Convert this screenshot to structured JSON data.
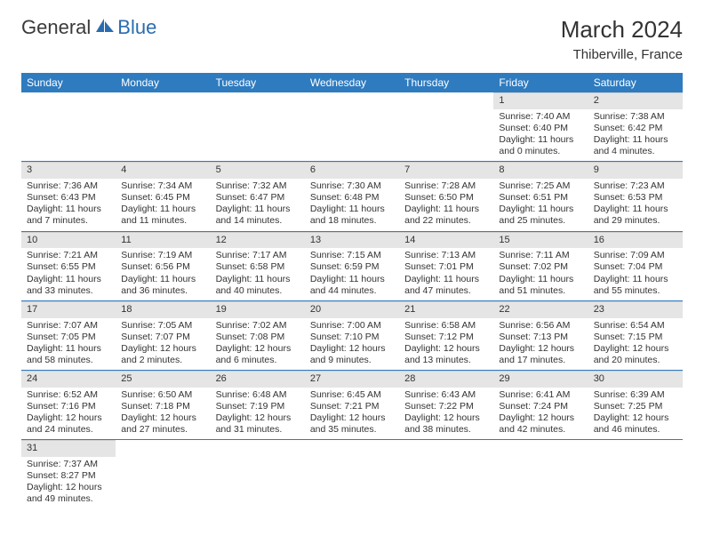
{
  "logo": {
    "name": "General",
    "suffix": "Blue"
  },
  "title": "March 2024",
  "location": "Thiberville, France",
  "header_bg": "#2f7bbf",
  "day_num_bg": "#e5e5e5",
  "days_of_week": [
    "Sunday",
    "Monday",
    "Tuesday",
    "Wednesday",
    "Thursday",
    "Friday",
    "Saturday"
  ],
  "weeks": [
    [
      null,
      null,
      null,
      null,
      null,
      {
        "n": "1",
        "sr": "Sunrise: 7:40 AM",
        "ss": "Sunset: 6:40 PM",
        "dl1": "Daylight: 11 hours",
        "dl2": "and 0 minutes."
      },
      {
        "n": "2",
        "sr": "Sunrise: 7:38 AM",
        "ss": "Sunset: 6:42 PM",
        "dl1": "Daylight: 11 hours",
        "dl2": "and 4 minutes."
      }
    ],
    [
      {
        "n": "3",
        "sr": "Sunrise: 7:36 AM",
        "ss": "Sunset: 6:43 PM",
        "dl1": "Daylight: 11 hours",
        "dl2": "and 7 minutes."
      },
      {
        "n": "4",
        "sr": "Sunrise: 7:34 AM",
        "ss": "Sunset: 6:45 PM",
        "dl1": "Daylight: 11 hours",
        "dl2": "and 11 minutes."
      },
      {
        "n": "5",
        "sr": "Sunrise: 7:32 AM",
        "ss": "Sunset: 6:47 PM",
        "dl1": "Daylight: 11 hours",
        "dl2": "and 14 minutes."
      },
      {
        "n": "6",
        "sr": "Sunrise: 7:30 AM",
        "ss": "Sunset: 6:48 PM",
        "dl1": "Daylight: 11 hours",
        "dl2": "and 18 minutes."
      },
      {
        "n": "7",
        "sr": "Sunrise: 7:28 AM",
        "ss": "Sunset: 6:50 PM",
        "dl1": "Daylight: 11 hours",
        "dl2": "and 22 minutes."
      },
      {
        "n": "8",
        "sr": "Sunrise: 7:25 AM",
        "ss": "Sunset: 6:51 PM",
        "dl1": "Daylight: 11 hours",
        "dl2": "and 25 minutes."
      },
      {
        "n": "9",
        "sr": "Sunrise: 7:23 AM",
        "ss": "Sunset: 6:53 PM",
        "dl1": "Daylight: 11 hours",
        "dl2": "and 29 minutes."
      }
    ],
    [
      {
        "n": "10",
        "sr": "Sunrise: 7:21 AM",
        "ss": "Sunset: 6:55 PM",
        "dl1": "Daylight: 11 hours",
        "dl2": "and 33 minutes."
      },
      {
        "n": "11",
        "sr": "Sunrise: 7:19 AM",
        "ss": "Sunset: 6:56 PM",
        "dl1": "Daylight: 11 hours",
        "dl2": "and 36 minutes."
      },
      {
        "n": "12",
        "sr": "Sunrise: 7:17 AM",
        "ss": "Sunset: 6:58 PM",
        "dl1": "Daylight: 11 hours",
        "dl2": "and 40 minutes."
      },
      {
        "n": "13",
        "sr": "Sunrise: 7:15 AM",
        "ss": "Sunset: 6:59 PM",
        "dl1": "Daylight: 11 hours",
        "dl2": "and 44 minutes."
      },
      {
        "n": "14",
        "sr": "Sunrise: 7:13 AM",
        "ss": "Sunset: 7:01 PM",
        "dl1": "Daylight: 11 hours",
        "dl2": "and 47 minutes."
      },
      {
        "n": "15",
        "sr": "Sunrise: 7:11 AM",
        "ss": "Sunset: 7:02 PM",
        "dl1": "Daylight: 11 hours",
        "dl2": "and 51 minutes."
      },
      {
        "n": "16",
        "sr": "Sunrise: 7:09 AM",
        "ss": "Sunset: 7:04 PM",
        "dl1": "Daylight: 11 hours",
        "dl2": "and 55 minutes."
      }
    ],
    [
      {
        "n": "17",
        "sr": "Sunrise: 7:07 AM",
        "ss": "Sunset: 7:05 PM",
        "dl1": "Daylight: 11 hours",
        "dl2": "and 58 minutes."
      },
      {
        "n": "18",
        "sr": "Sunrise: 7:05 AM",
        "ss": "Sunset: 7:07 PM",
        "dl1": "Daylight: 12 hours",
        "dl2": "and 2 minutes."
      },
      {
        "n": "19",
        "sr": "Sunrise: 7:02 AM",
        "ss": "Sunset: 7:08 PM",
        "dl1": "Daylight: 12 hours",
        "dl2": "and 6 minutes."
      },
      {
        "n": "20",
        "sr": "Sunrise: 7:00 AM",
        "ss": "Sunset: 7:10 PM",
        "dl1": "Daylight: 12 hours",
        "dl2": "and 9 minutes."
      },
      {
        "n": "21",
        "sr": "Sunrise: 6:58 AM",
        "ss": "Sunset: 7:12 PM",
        "dl1": "Daylight: 12 hours",
        "dl2": "and 13 minutes."
      },
      {
        "n": "22",
        "sr": "Sunrise: 6:56 AM",
        "ss": "Sunset: 7:13 PM",
        "dl1": "Daylight: 12 hours",
        "dl2": "and 17 minutes."
      },
      {
        "n": "23",
        "sr": "Sunrise: 6:54 AM",
        "ss": "Sunset: 7:15 PM",
        "dl1": "Daylight: 12 hours",
        "dl2": "and 20 minutes."
      }
    ],
    [
      {
        "n": "24",
        "sr": "Sunrise: 6:52 AM",
        "ss": "Sunset: 7:16 PM",
        "dl1": "Daylight: 12 hours",
        "dl2": "and 24 minutes."
      },
      {
        "n": "25",
        "sr": "Sunrise: 6:50 AM",
        "ss": "Sunset: 7:18 PM",
        "dl1": "Daylight: 12 hours",
        "dl2": "and 27 minutes."
      },
      {
        "n": "26",
        "sr": "Sunrise: 6:48 AM",
        "ss": "Sunset: 7:19 PM",
        "dl1": "Daylight: 12 hours",
        "dl2": "and 31 minutes."
      },
      {
        "n": "27",
        "sr": "Sunrise: 6:45 AM",
        "ss": "Sunset: 7:21 PM",
        "dl1": "Daylight: 12 hours",
        "dl2": "and 35 minutes."
      },
      {
        "n": "28",
        "sr": "Sunrise: 6:43 AM",
        "ss": "Sunset: 7:22 PM",
        "dl1": "Daylight: 12 hours",
        "dl2": "and 38 minutes."
      },
      {
        "n": "29",
        "sr": "Sunrise: 6:41 AM",
        "ss": "Sunset: 7:24 PM",
        "dl1": "Daylight: 12 hours",
        "dl2": "and 42 minutes."
      },
      {
        "n": "30",
        "sr": "Sunrise: 6:39 AM",
        "ss": "Sunset: 7:25 PM",
        "dl1": "Daylight: 12 hours",
        "dl2": "and 46 minutes."
      }
    ],
    [
      {
        "n": "31",
        "sr": "Sunrise: 7:37 AM",
        "ss": "Sunset: 8:27 PM",
        "dl1": "Daylight: 12 hours",
        "dl2": "and 49 minutes."
      },
      null,
      null,
      null,
      null,
      null,
      null
    ]
  ]
}
